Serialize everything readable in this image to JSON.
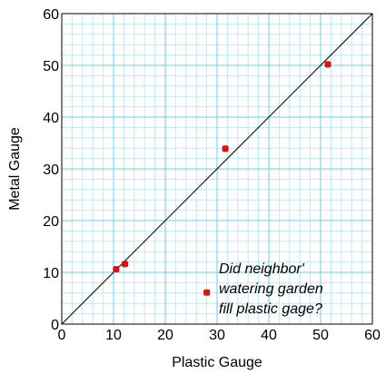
{
  "chart_data": {
    "type": "scatter",
    "title": "",
    "xlabel": "Plastic Gauge",
    "ylabel": "Metal Gauge",
    "xlim": [
      0,
      60
    ],
    "ylim": [
      0,
      60
    ],
    "xticks": [
      "0",
      "10",
      "20",
      "30",
      "40",
      "50",
      "60"
    ],
    "yticks": [
      "0",
      "10",
      "20",
      "30",
      "40",
      "50",
      "60"
    ],
    "grid": true,
    "reference_line": "y = x",
    "points": [
      {
        "x": 10.5,
        "y": 10.6
      },
      {
        "x": 12.2,
        "y": 11.6
      },
      {
        "x": 31.6,
        "y": 33.9
      },
      {
        "x": 51.4,
        "y": 50.2
      },
      {
        "x": 28.0,
        "y": 6.1
      }
    ],
    "annotation": {
      "lines": [
        "Did neighbor'",
        "watering garden",
        "fill plastic gage?"
      ]
    }
  },
  "colors": {
    "background": "#ffffff",
    "grid_major": "#6ecff0",
    "grid_minor": "#bfe9f8",
    "axis": "#000000",
    "point": "#dd1111",
    "reference_line": "#000000"
  }
}
